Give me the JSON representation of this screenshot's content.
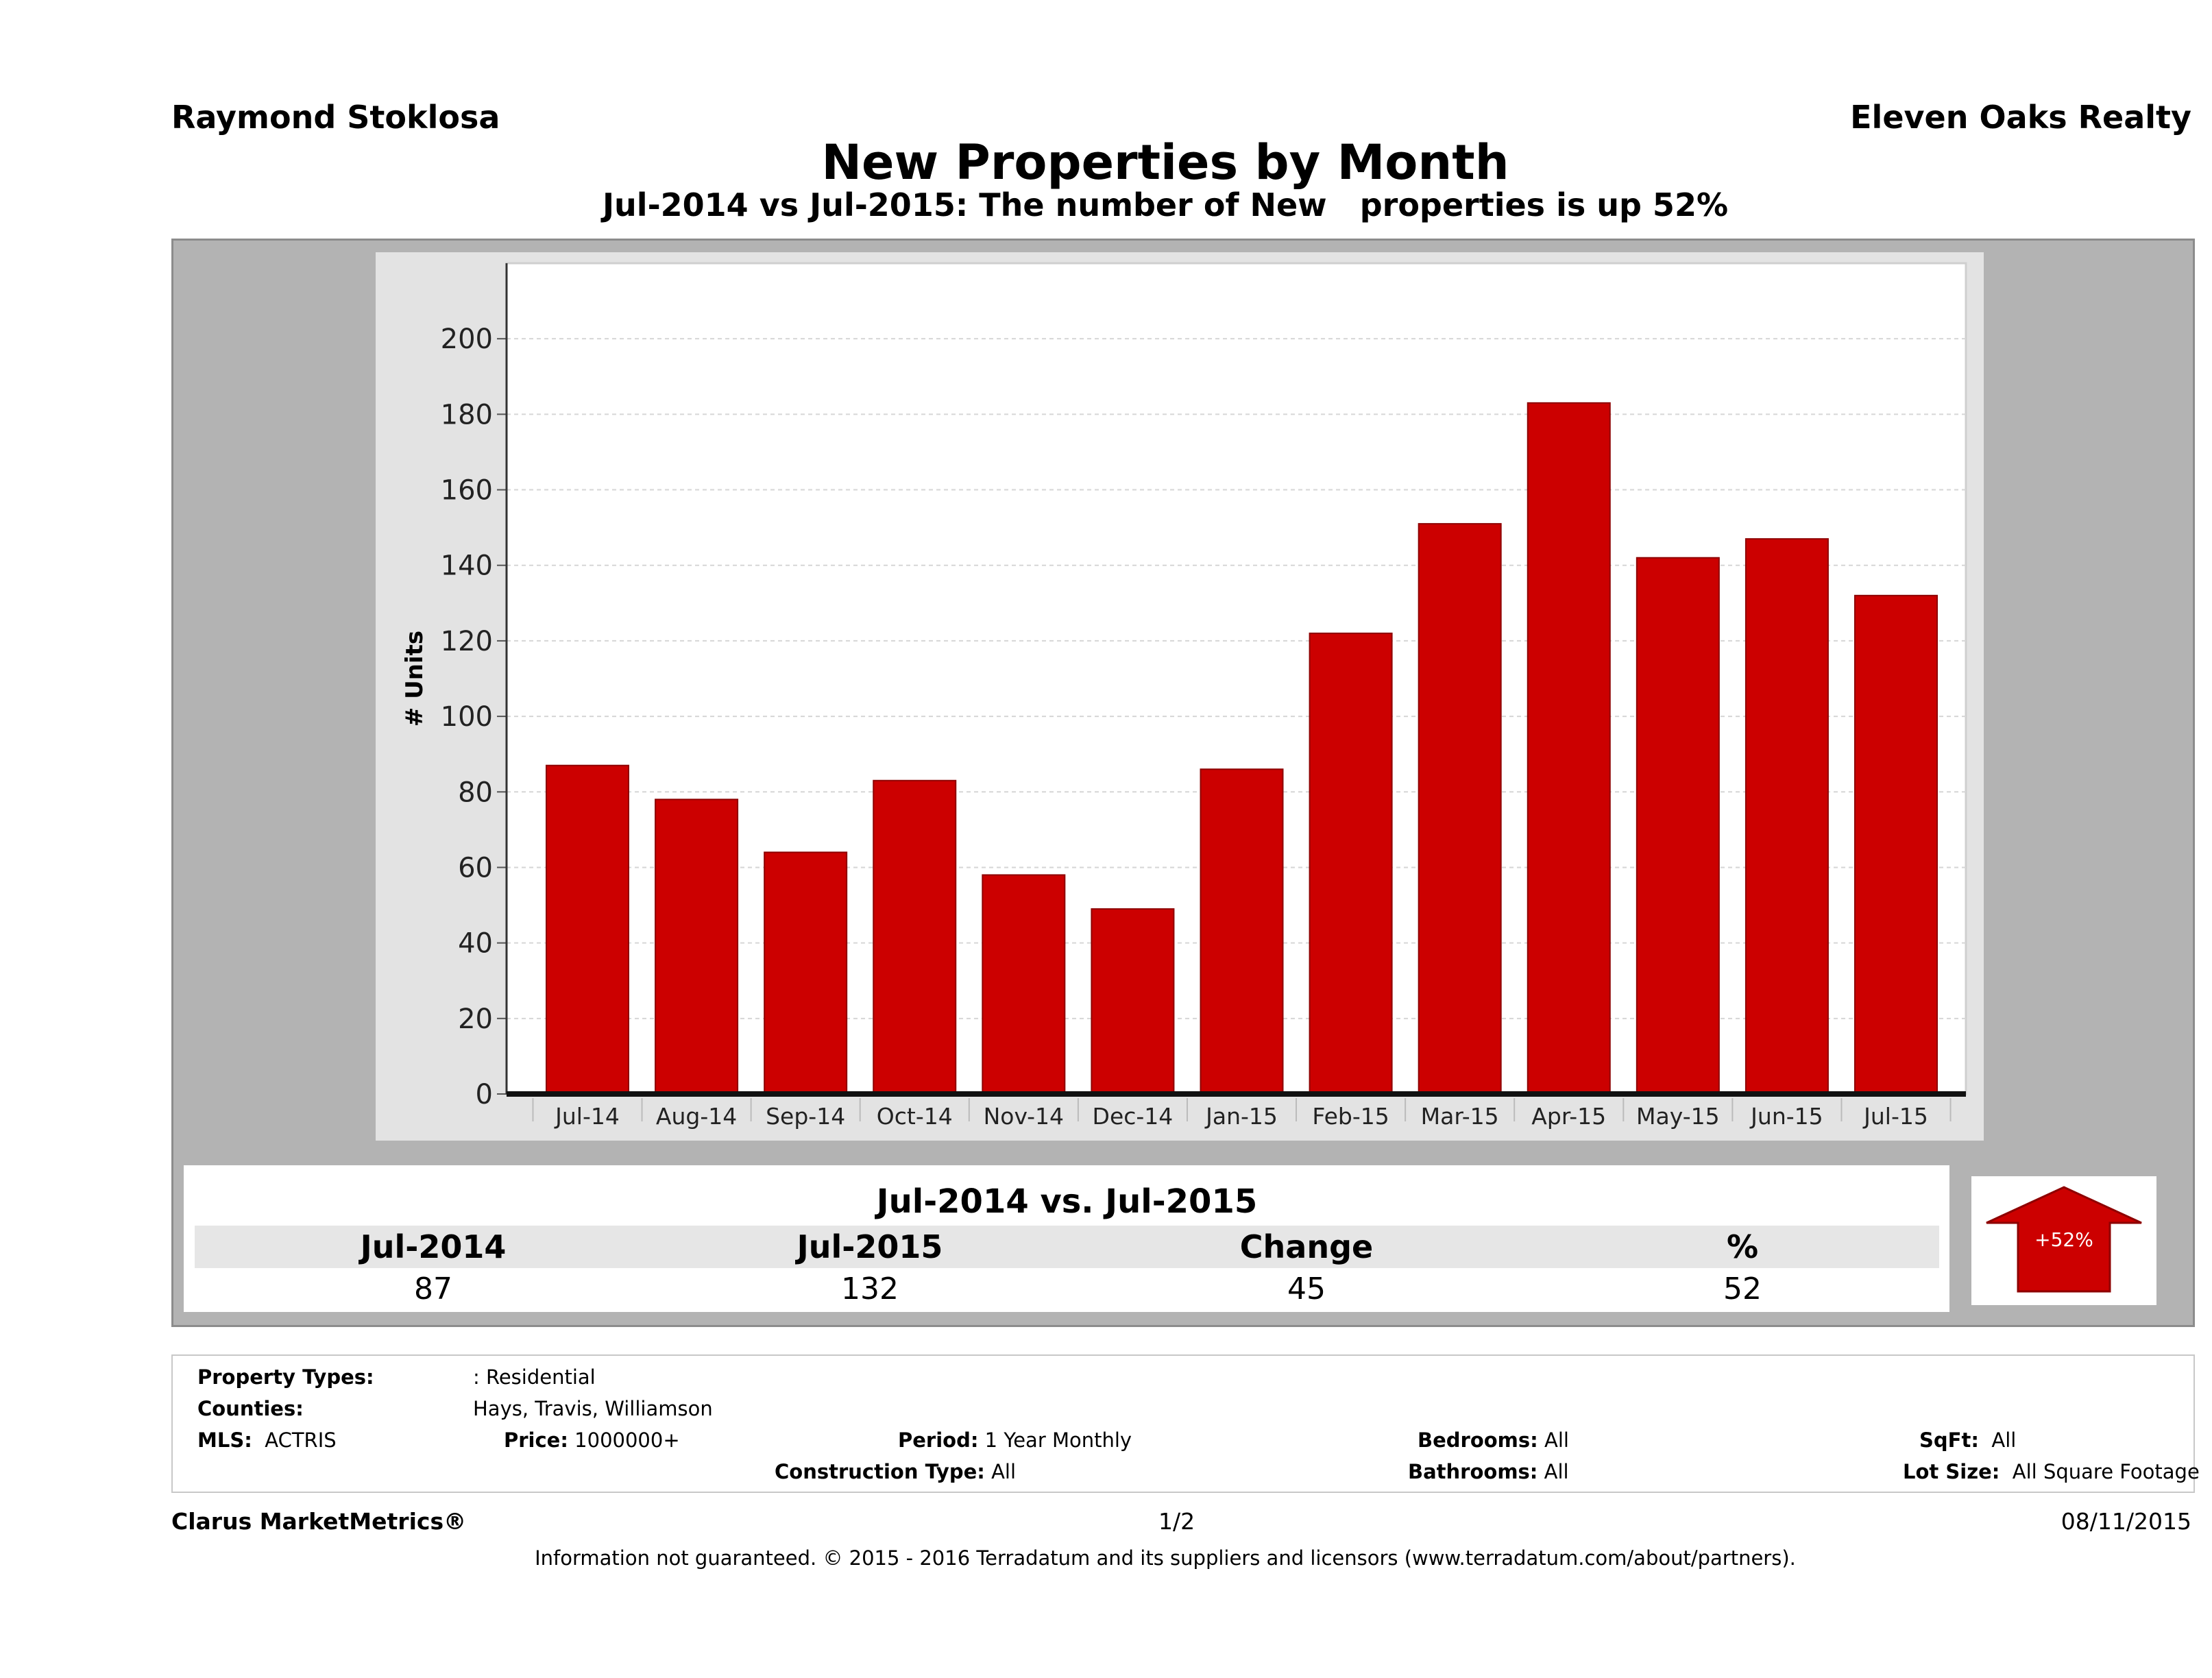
{
  "header": {
    "agent": "Raymond Stoklosa",
    "brokerage": "Eleven Oaks Realty",
    "title": "New Properties by Month",
    "subtitle": "Jul-2014 vs Jul-2015: The number of New   properties is up 52%"
  },
  "chart_data": {
    "type": "bar",
    "categories": [
      "Jul-14",
      "Aug-14",
      "Sep-14",
      "Oct-14",
      "Nov-14",
      "Dec-14",
      "Jan-15",
      "Feb-15",
      "Mar-15",
      "Apr-15",
      "May-15",
      "Jun-15",
      "Jul-15"
    ],
    "values": [
      87,
      78,
      64,
      83,
      58,
      49,
      86,
      122,
      151,
      183,
      142,
      147,
      132
    ],
    "ylabel": "# Units",
    "ylim": [
      0,
      220
    ],
    "yticks": [
      0,
      20,
      40,
      60,
      80,
      100,
      120,
      140,
      160,
      180,
      200
    ],
    "grid": true,
    "bar_color": "#cc0000"
  },
  "summary": {
    "title": "Jul-2014 vs. Jul-2015",
    "headers": [
      "Jul-2014",
      "Jul-2015",
      "Change",
      "%"
    ],
    "values": [
      "87",
      "132",
      "45",
      "52"
    ],
    "badge": "+52%",
    "badge_color": "#cc0000"
  },
  "info": {
    "property_types_label": "Property Types:",
    "property_types_value": ": Residential",
    "counties_label": "Counties:",
    "counties_value": "Hays, Travis, Williamson",
    "mls_label": "MLS:",
    "mls_value": "ACTRIS",
    "price_label": "Price:",
    "price_value": "1000000+",
    "period_label": "Period:",
    "period_value": "1 Year Monthly",
    "construction_label": "Construction Type:",
    "construction_value": "All",
    "bedrooms_label": "Bedrooms:",
    "bedrooms_value": "All",
    "bathrooms_label": "Bathrooms:",
    "bathrooms_value": "All",
    "sqft_label": "SqFt:",
    "sqft_value": "All",
    "lotsize_label": "Lot Size:",
    "lotsize_value": "All Square Footage"
  },
  "footer": {
    "product": "Clarus MarketMetrics®",
    "page": "1/2",
    "date": "08/11/2015",
    "disclaimer": "Information not guaranteed. © 2015 - 2016 Terradatum and its suppliers and licensors (www.terradatum.com/about/partners)."
  }
}
